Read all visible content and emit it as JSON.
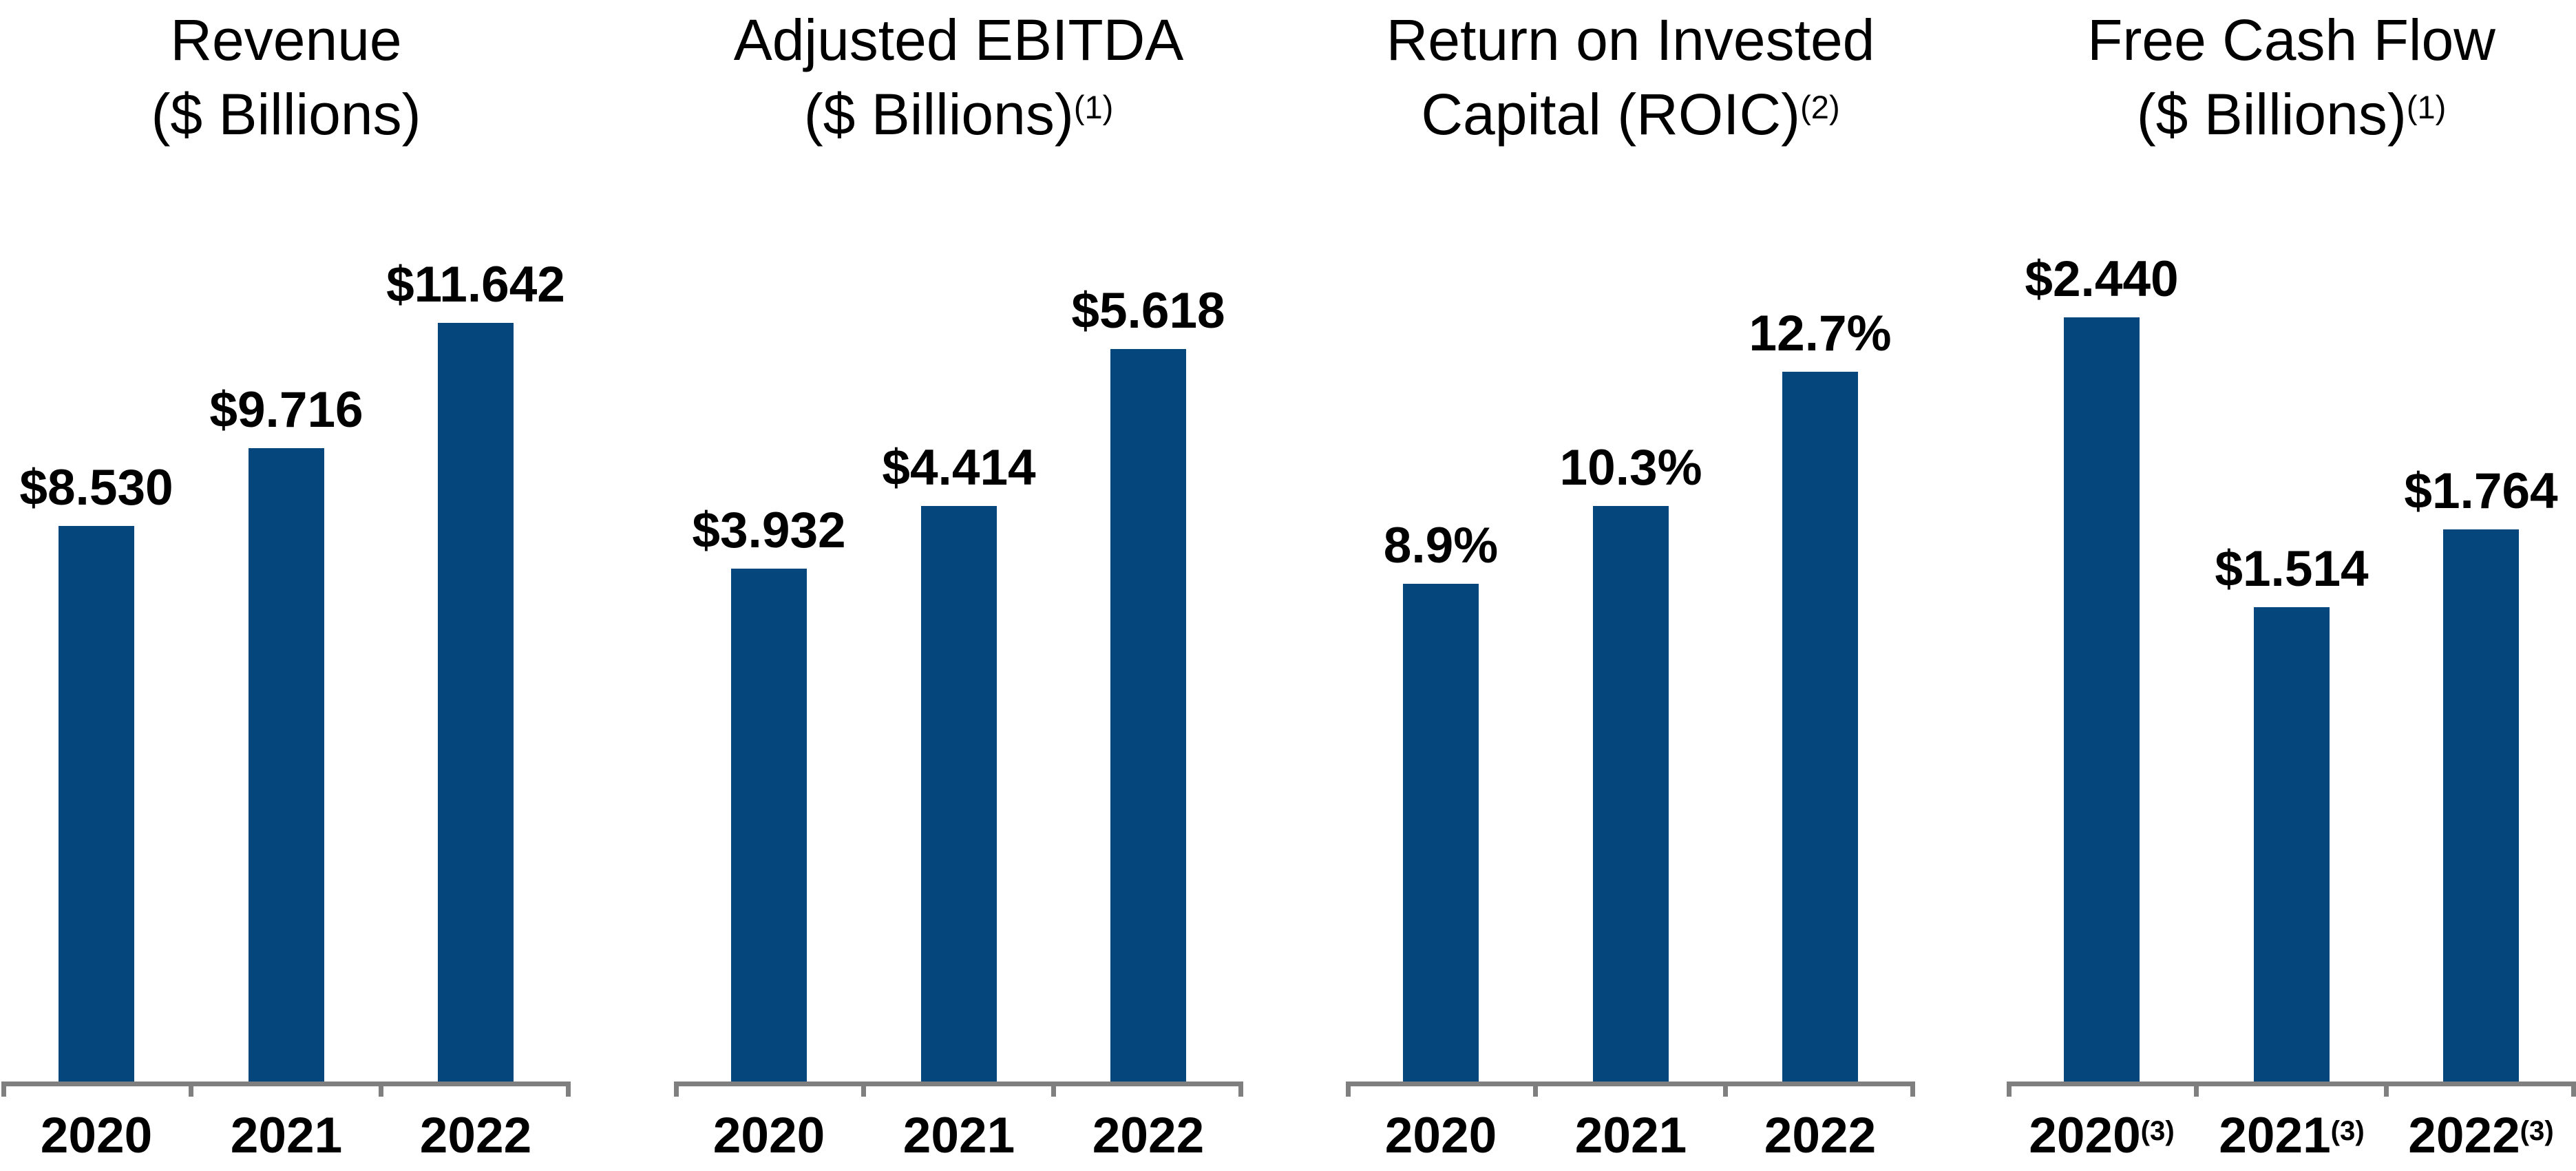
{
  "background": "#FFFFFF",
  "colors": {
    "bar": "#05477C",
    "axis": "#7F7F7F",
    "text": "#000000"
  },
  "chart_data": [
    {
      "type": "bar",
      "title_lines": [
        "Revenue",
        "($ Billions)"
      ],
      "title_footnote_sup": "",
      "categories": [
        "2020",
        "2021",
        "2022"
      ],
      "category_sups": [
        "",
        "",
        ""
      ],
      "values": [
        8.53,
        9.716,
        11.642
      ],
      "bar_labels": [
        "$8.530",
        "$9.716",
        "$11.642"
      ],
      "legend": "none",
      "grid": "off",
      "y_axis_visible": false
    },
    {
      "type": "bar",
      "title_lines": [
        "Adjusted EBITDA",
        "($ Billions)"
      ],
      "title_footnote_sup": "(1)",
      "categories": [
        "2020",
        "2021",
        "2022"
      ],
      "category_sups": [
        "",
        "",
        ""
      ],
      "values": [
        3.932,
        4.414,
        5.618
      ],
      "bar_labels": [
        "$3.932",
        "$4.414",
        "$5.618"
      ],
      "legend": "none",
      "grid": "off",
      "y_axis_visible": false
    },
    {
      "type": "bar",
      "title_lines": [
        "Return on Invested",
        "Capital (ROIC)"
      ],
      "title_footnote_sup": "(2)",
      "categories": [
        "2020",
        "2021",
        "2022"
      ],
      "category_sups": [
        "",
        "",
        ""
      ],
      "values": [
        8.9,
        10.3,
        12.7
      ],
      "bar_labels": [
        "8.9%",
        "10.3%",
        "12.7%"
      ],
      "legend": "none",
      "grid": "off",
      "y_axis_visible": false
    },
    {
      "type": "bar",
      "title_lines": [
        "Free Cash Flow",
        "($ Billions)"
      ],
      "title_footnote_sup": "(1)",
      "categories": [
        "2020",
        "2021",
        "2022"
      ],
      "category_sups": [
        "(3)",
        "(3)",
        "(3)"
      ],
      "values": [
        2.44,
        1.514,
        1.764
      ],
      "bar_labels": [
        "$2.440",
        "$1.514",
        "$1.764"
      ],
      "legend": "none",
      "grid": "off",
      "y_axis_visible": false
    }
  ]
}
